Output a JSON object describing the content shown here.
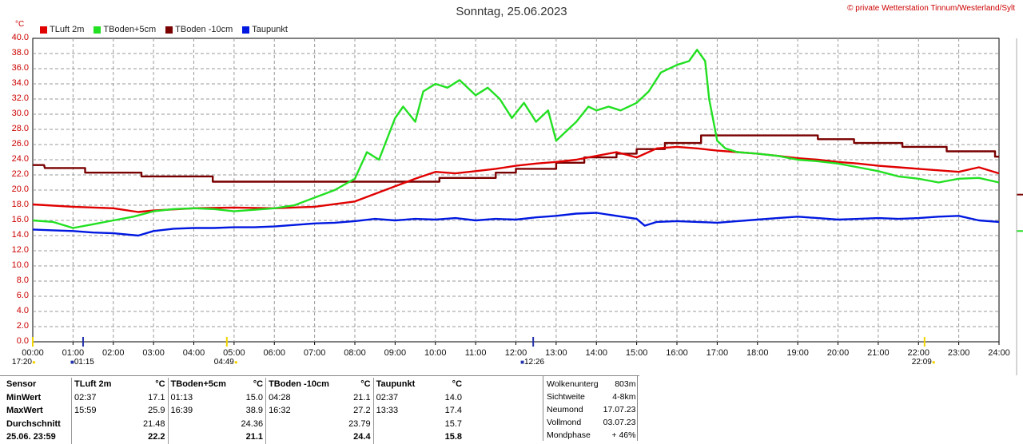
{
  "header": {
    "title": "Sonntag, 25.06.2023",
    "copyright": "© private Wetterstation Tinnum/Westerland/Sylt"
  },
  "legend": [
    {
      "label": "TLuft 2m",
      "color": "#e00000"
    },
    {
      "label": "TBoden+5cm",
      "color": "#22e022"
    },
    {
      "label": "TBoden -10cm",
      "color": "#7a0000"
    },
    {
      "label": "Taupunkt",
      "color": "#0018e0"
    }
  ],
  "chart_data": {
    "type": "line",
    "unit_label": "°C",
    "ylim": [
      0,
      40
    ],
    "y_ticks": [
      "0.0",
      "2.0",
      "4.0",
      "6.0",
      "8.0",
      "10.0",
      "12.0",
      "14.0",
      "16.0",
      "18.0",
      "20.0",
      "22.0",
      "24.0",
      "26.0",
      "28.0",
      "30.0",
      "32.0",
      "34.0",
      "36.0",
      "38.0",
      "40.0"
    ],
    "xlim": [
      0,
      24
    ],
    "x_ticks": [
      "00:00",
      "01:00",
      "02:00",
      "03:00",
      "04:00",
      "05:00",
      "06:00",
      "07:00",
      "08:00",
      "09:00",
      "10:00",
      "11:00",
      "12:00",
      "13:00",
      "14:00",
      "15:00",
      "16:00",
      "17:00",
      "18:00",
      "19:00",
      "20:00",
      "21:00",
      "22:00",
      "23:00",
      "24:00"
    ],
    "grid": true,
    "series": [
      {
        "name": "TLuft 2m",
        "color": "#e00000",
        "x": [
          0,
          1,
          2,
          2.62,
          3,
          4,
          5,
          6,
          7,
          8,
          8.5,
          9,
          9.5,
          10,
          10.5,
          11,
          11.5,
          12,
          12.5,
          13,
          13.5,
          14,
          14.5,
          15,
          15.5,
          16,
          16.5,
          17,
          17.5,
          18,
          18.5,
          19,
          19.5,
          20,
          20.5,
          21,
          21.5,
          22,
          22.5,
          23,
          23.5,
          24
        ],
        "y": [
          18.1,
          17.8,
          17.6,
          17.1,
          17.3,
          17.6,
          17.7,
          17.6,
          17.8,
          18.5,
          19.5,
          20.5,
          21.5,
          22.4,
          22.2,
          22.5,
          22.8,
          23.2,
          23.5,
          23.7,
          24.0,
          24.5,
          25.0,
          24.3,
          25.5,
          25.7,
          25.5,
          25.2,
          25.0,
          24.8,
          24.5,
          24.2,
          24.0,
          23.7,
          23.5,
          23.2,
          23.0,
          22.8,
          22.6,
          22.4,
          23.0,
          22.2
        ]
      },
      {
        "name": "TBoden+5cm",
        "color": "#22e022",
        "x": [
          0,
          0.5,
          1,
          1.5,
          2,
          2.5,
          3,
          3.5,
          4,
          4.5,
          5,
          5.5,
          6,
          6.5,
          7,
          7.5,
          8,
          8.3,
          8.6,
          9,
          9.2,
          9.5,
          9.7,
          10,
          10.3,
          10.6,
          11,
          11.3,
          11.6,
          11.9,
          12.2,
          12.5,
          12.8,
          13,
          13.2,
          13.5,
          13.8,
          14,
          14.3,
          14.6,
          15,
          15.3,
          15.6,
          16,
          16.3,
          16.5,
          16.7,
          16.8,
          17,
          17.2,
          17.5,
          18,
          18.5,
          19,
          19.5,
          20,
          20.5,
          21,
          21.5,
          22,
          22.5,
          23,
          23.5,
          24
        ],
        "y": [
          16.0,
          15.8,
          15.0,
          15.5,
          16.0,
          16.5,
          17.2,
          17.5,
          17.6,
          17.5,
          17.2,
          17.4,
          17.6,
          18.0,
          19.0,
          20.0,
          21.5,
          25.0,
          24.0,
          29.5,
          31.0,
          29.0,
          33.0,
          34.0,
          33.5,
          34.5,
          32.5,
          33.5,
          32.0,
          29.5,
          31.5,
          29.0,
          30.5,
          26.5,
          27.5,
          29.0,
          31.0,
          30.5,
          31.0,
          30.5,
          31.5,
          33.0,
          35.5,
          36.5,
          37.0,
          38.5,
          37.0,
          32.0,
          26.5,
          25.5,
          25.0,
          24.8,
          24.5,
          24.0,
          23.8,
          23.5,
          23.0,
          22.5,
          21.8,
          21.5,
          21.0,
          21.5,
          21.6,
          21.0
        ]
      },
      {
        "name": "TBoden -10cm",
        "color": "#7a0000",
        "x": [
          0,
          0.28,
          0.3,
          1.3,
          1.3,
          2.7,
          2.7,
          4.47,
          4.47,
          10.1,
          10.1,
          11.5,
          11.5,
          12.0,
          12.0,
          13.0,
          13.0,
          13.7,
          13.7,
          14.5,
          14.5,
          15.0,
          15.0,
          15.7,
          15.7,
          16.6,
          16.6,
          19.5,
          19.5,
          20.4,
          20.4,
          21.6,
          21.6,
          22.7,
          22.7,
          23.9,
          23.9,
          24
        ],
        "y": [
          23.3,
          23.3,
          22.9,
          22.9,
          22.3,
          22.3,
          21.8,
          21.8,
          21.1,
          21.1,
          21.6,
          21.6,
          22.3,
          22.3,
          22.8,
          22.8,
          23.6,
          23.6,
          24.3,
          24.3,
          24.8,
          24.8,
          25.4,
          25.4,
          26.2,
          26.2,
          27.2,
          27.2,
          26.7,
          26.7,
          26.2,
          26.2,
          25.7,
          25.7,
          25.1,
          25.1,
          24.4,
          24.4
        ]
      },
      {
        "name": "Taupunkt",
        "color": "#0018e0",
        "x": [
          0,
          0.5,
          1,
          1.5,
          2,
          2.62,
          3,
          3.5,
          4,
          4.5,
          5,
          5.5,
          6,
          6.5,
          7,
          7.5,
          8,
          8.5,
          9,
          9.5,
          10,
          10.5,
          11,
          11.5,
          12,
          12.5,
          13,
          13.5,
          14,
          14.5,
          15,
          15.2,
          15.5,
          16,
          16.5,
          17,
          17.5,
          18,
          18.5,
          19,
          19.5,
          20,
          20.5,
          21,
          21.5,
          22,
          22.5,
          23,
          23.5,
          24
        ],
        "y": [
          14.8,
          14.7,
          14.6,
          14.4,
          14.3,
          14.0,
          14.6,
          14.9,
          15.0,
          15.0,
          15.1,
          15.1,
          15.2,
          15.4,
          15.6,
          15.7,
          15.9,
          16.2,
          16.0,
          16.2,
          16.1,
          16.3,
          16.0,
          16.2,
          16.1,
          16.4,
          16.6,
          16.9,
          17.0,
          16.6,
          16.2,
          15.3,
          15.8,
          15.9,
          15.8,
          15.7,
          15.9,
          16.1,
          16.3,
          16.5,
          16.3,
          16.1,
          16.2,
          16.3,
          16.2,
          16.3,
          16.5,
          16.6,
          16.0,
          15.8
        ]
      }
    ],
    "right_markers": [
      {
        "series": "TBoden -10cm",
        "value": 19.4
      },
      {
        "series": "TBoden+5cm",
        "value": 14.6
      }
    ]
  },
  "astro": {
    "markers": [
      {
        "time": "17:20",
        "hour": -0.2,
        "icon": "sun-icon"
      },
      {
        "time": "01:15",
        "hour": 1.25,
        "icon": "moon-icon"
      },
      {
        "time": "04:49",
        "hour": 4.82,
        "icon": "sun-icon"
      },
      {
        "time": "12:26",
        "hour": 12.43,
        "icon": "moon-icon"
      },
      {
        "time": "22:09",
        "hour": 22.15,
        "icon": "sun-icon"
      }
    ]
  },
  "stats": {
    "headers": [
      "Sensor",
      "TLuft 2m",
      "°C",
      "TBoden+5cm",
      "°C",
      "TBoden -10cm",
      "°C",
      "Taupunkt",
      "°C"
    ],
    "rows": [
      [
        "MinWert",
        "02:37",
        "17.1",
        "01:13",
        "15.0",
        "04:28",
        "21.1",
        "02:37",
        "14.0"
      ],
      [
        "MaxWert",
        "15:59",
        "25.9",
        "16:39",
        "38.9",
        "16:32",
        "27.2",
        "13:33",
        "17.4"
      ],
      [
        "Durchschnitt",
        "",
        "21.48",
        "",
        "24.36",
        "",
        "23.79",
        "",
        "15.7"
      ],
      [
        "25.06. 23:59",
        "",
        "22.2",
        "",
        "21.1",
        "",
        "24.4",
        "",
        "15.8"
      ]
    ]
  },
  "info": [
    {
      "label": "Wolkenunterg",
      "value": "803m"
    },
    {
      "label": "Sichtweite",
      "value": "4-8km"
    },
    {
      "label": "Neumond",
      "value": "17.07.23"
    },
    {
      "label": "Vollmond",
      "value": "03.07.23"
    },
    {
      "label": "Mondphase",
      "value": "+ 46%"
    }
  ]
}
